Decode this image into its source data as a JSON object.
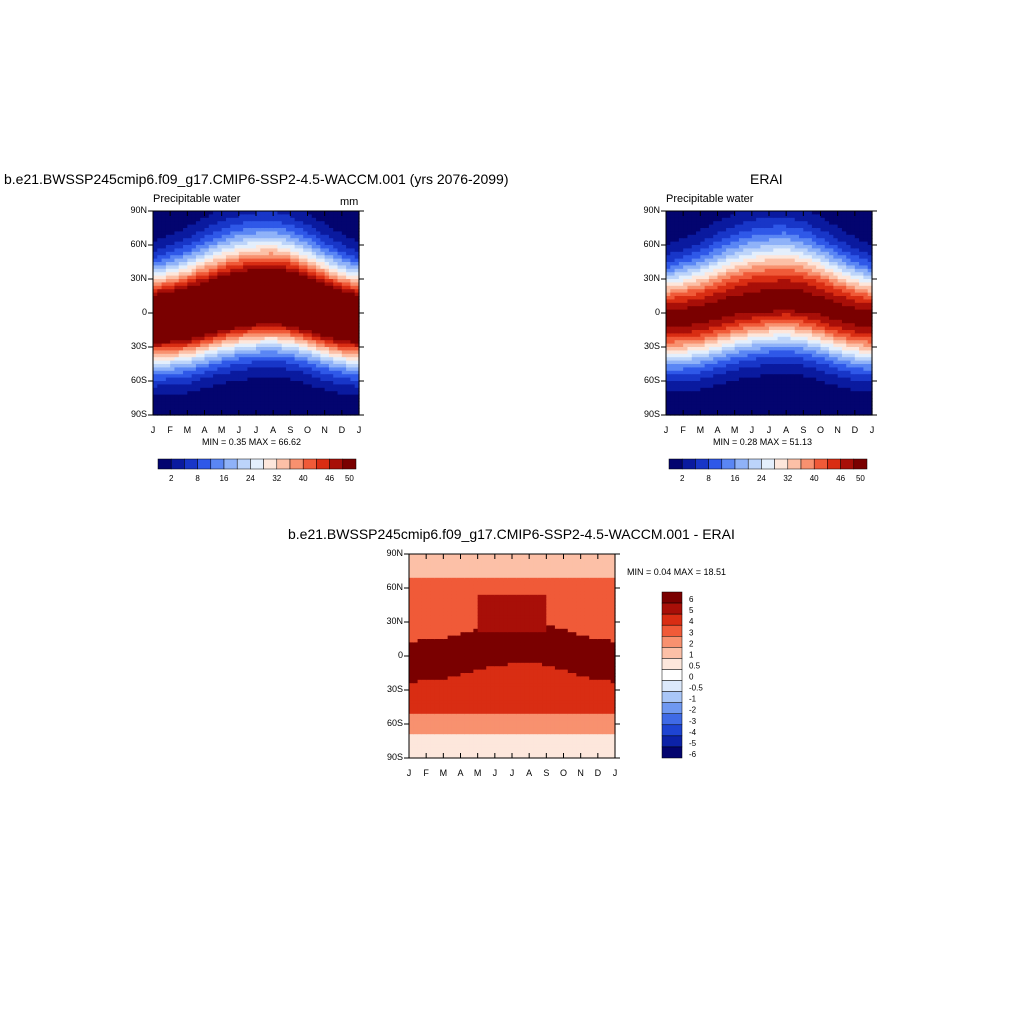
{
  "panels": [
    {
      "title": "b.e21.BWSSP245cmip6.f09_g17.CMIP6-SSP2-4.5-WACCM.001 (yrs 2076-2099)",
      "left_label": "Precipitable water",
      "right_label": "mm",
      "stats": "MIN =   0.35 MAX =  66.62"
    },
    {
      "title": "ERAI",
      "left_label": "Precipitable water",
      "right_label": "",
      "stats": "MIN =   0.28 MAX =  51.13"
    },
    {
      "title": "b.e21.BWSSP245cmip6.f09_g17.CMIP6-SSP2-4.5-WACCM.001 - ERAI",
      "left_label": "",
      "right_label": "",
      "stats": "MIN =   0.04 MAX =  18.51"
    }
  ],
  "chart_data": [
    {
      "type": "heatmap",
      "title": "b.e21.BWSSP245cmip6.f09_g17.CMIP6-SSP2-4.5-WACCM.001 (yrs 2076-2099)",
      "variable": "Precipitable water",
      "units": "mm",
      "x_tick_labels": [
        "J",
        "F",
        "M",
        "A",
        "M",
        "J",
        "J",
        "A",
        "S",
        "O",
        "N",
        "D",
        "J"
      ],
      "y_tick_labels": [
        "90N",
        "60N",
        "30N",
        "0",
        "30S",
        "60S",
        "90S"
      ],
      "ylim": [
        -90,
        90
      ],
      "min": 0.35,
      "max": 66.62,
      "colorbar_labels": [
        "2",
        "8",
        "16",
        "24",
        "32",
        "40",
        "46",
        "50"
      ],
      "colorbar_colors": [
        "#03046f",
        "#0a1a9f",
        "#1836c8",
        "#2f58e8",
        "#5a86f4",
        "#8fb2f8",
        "#bcd4fa",
        "#e4effc",
        "#fde7dc",
        "#fcc0a7",
        "#f8916f",
        "#f05a38",
        "#d92d13",
        "#a80f08",
        "#7a0000"
      ],
      "peak_latitude_by_month": [
        -5,
        -4,
        -2,
        2,
        6,
        9,
        11,
        12,
        10,
        6,
        1,
        -3,
        -5
      ]
    },
    {
      "type": "heatmap",
      "title": "ERAI",
      "variable": "Precipitable water",
      "x_tick_labels": [
        "J",
        "F",
        "M",
        "A",
        "M",
        "J",
        "J",
        "A",
        "S",
        "O",
        "N",
        "D",
        "J"
      ],
      "y_tick_labels": [
        "90N",
        "60N",
        "30N",
        "0",
        "30S",
        "60S",
        "90S"
      ],
      "ylim": [
        -90,
        90
      ],
      "min": 0.28,
      "max": 51.13,
      "colorbar_labels": [
        "2",
        "8",
        "16",
        "24",
        "32",
        "40",
        "46",
        "50"
      ],
      "colorbar_colors": [
        "#03046f",
        "#0a1a9f",
        "#1836c8",
        "#2f58e8",
        "#5a86f4",
        "#8fb2f8",
        "#bcd4fa",
        "#e4effc",
        "#fde7dc",
        "#fcc0a7",
        "#f8916f",
        "#f05a38",
        "#d92d13",
        "#a80f08",
        "#7a0000"
      ],
      "peak_latitude_by_month": [
        -5,
        -4,
        -2,
        2,
        6,
        9,
        11,
        12,
        10,
        6,
        1,
        -3,
        -5
      ]
    },
    {
      "type": "heatmap",
      "title": "b.e21.BWSSP245cmip6.f09_g17.CMIP6-SSP2-4.5-WACCM.001 - ERAI",
      "x_tick_labels": [
        "J",
        "F",
        "M",
        "A",
        "M",
        "J",
        "J",
        "A",
        "S",
        "O",
        "N",
        "D",
        "J"
      ],
      "y_tick_labels": [
        "90N",
        "60N",
        "30N",
        "0",
        "30S",
        "60S",
        "90S"
      ],
      "ylim": [
        -90,
        90
      ],
      "min": 0.04,
      "max": 18.51,
      "colorbar_labels": [
        "6",
        "5",
        "4",
        "3",
        "2",
        "1",
        "0.5",
        "0",
        "-0.5",
        "-1",
        "-2",
        "-3",
        "-4",
        "-5",
        "-6"
      ],
      "colorbar_colors": [
        "#7a0000",
        "#a80f08",
        "#d92d13",
        "#f05a38",
        "#f8916f",
        "#fcc0a7",
        "#fde7dc",
        "#ffffff",
        "#dce9fb",
        "#a9c6f7",
        "#6f98f1",
        "#3f6ae6",
        "#1e44d2",
        "#0c22a8",
        "#03046f"
      ]
    }
  ]
}
